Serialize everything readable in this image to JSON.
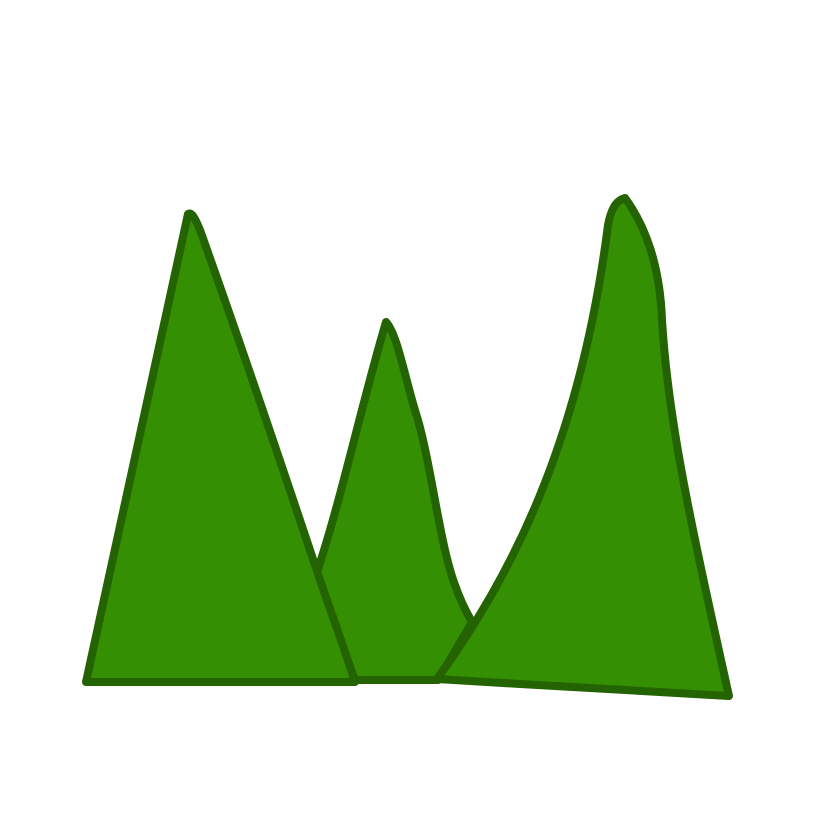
{
  "illustration": {
    "icon": "green-hills-icon",
    "fill_color": "#358f03",
    "outline_color": "#236302",
    "background_color": "#ffffff"
  }
}
